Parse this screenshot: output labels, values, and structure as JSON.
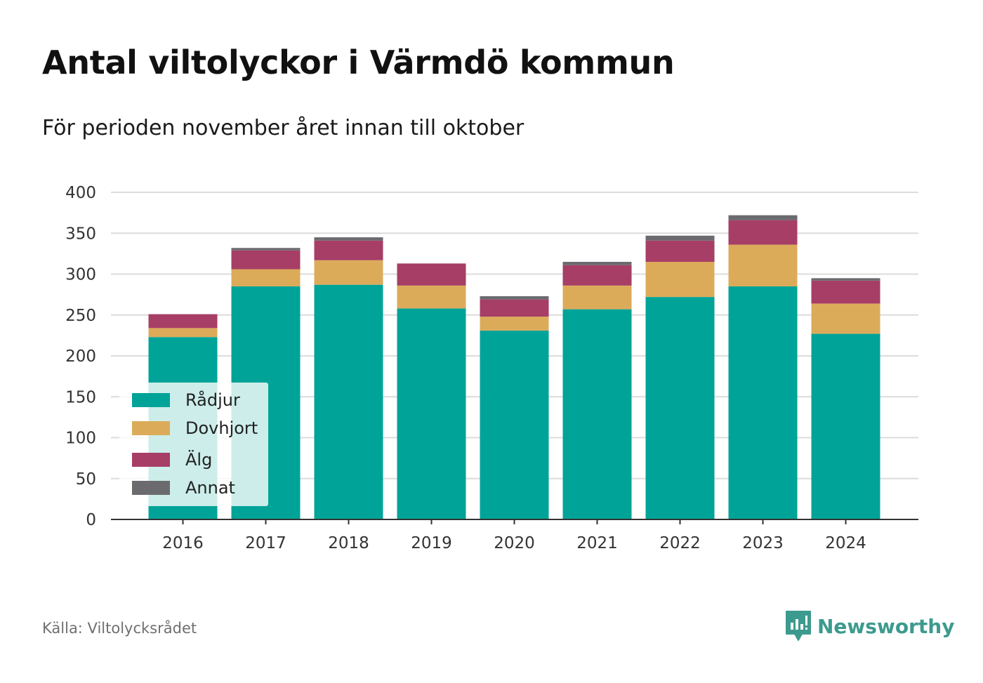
{
  "title": "Antal viltolyckor i Värmdö kommun",
  "subtitle": "För perioden november året innan till oktober",
  "source": "Källa: Viltolycksrådet",
  "brand": {
    "name": "Newsworthy",
    "icon": "newsworthy-logo-icon",
    "color": "#3d9a8e"
  },
  "legend": {
    "placement": "bottom-left",
    "items": [
      {
        "label": "Rådjur",
        "color": "#00a398"
      },
      {
        "label": "Dovhjort",
        "color": "#dcab5a"
      },
      {
        "label": "Älg",
        "color": "#a63e66"
      },
      {
        "label": "Annat",
        "color": "#6b6b6f"
      }
    ]
  },
  "chart_data": {
    "type": "bar",
    "stacked": true,
    "title": "Antal viltolyckor i Värmdö kommun",
    "subtitle": "För perioden november året innan till oktober",
    "xlabel": "",
    "ylabel": "",
    "categories": [
      "2016",
      "2017",
      "2018",
      "2019",
      "2020",
      "2021",
      "2022",
      "2023",
      "2024"
    ],
    "ylim": [
      0,
      400
    ],
    "yticks": [
      0,
      50,
      100,
      150,
      200,
      250,
      300,
      350,
      400
    ],
    "grid": "horizontal",
    "series": [
      {
        "name": "Rådjur",
        "color": "#00a398",
        "values": [
          223,
          285,
          287,
          258,
          231,
          257,
          272,
          285,
          227
        ]
      },
      {
        "name": "Dovhjort",
        "color": "#dcab5a",
        "values": [
          11,
          21,
          30,
          28,
          17,
          29,
          43,
          51,
          37
        ]
      },
      {
        "name": "Älg",
        "color": "#a63e66",
        "values": [
          17,
          23,
          24,
          27,
          21,
          25,
          26,
          30,
          28
        ]
      },
      {
        "name": "Annat",
        "color": "#6b6b6f",
        "values": [
          0,
          3,
          4,
          0,
          4,
          4,
          6,
          6,
          3
        ]
      }
    ]
  }
}
